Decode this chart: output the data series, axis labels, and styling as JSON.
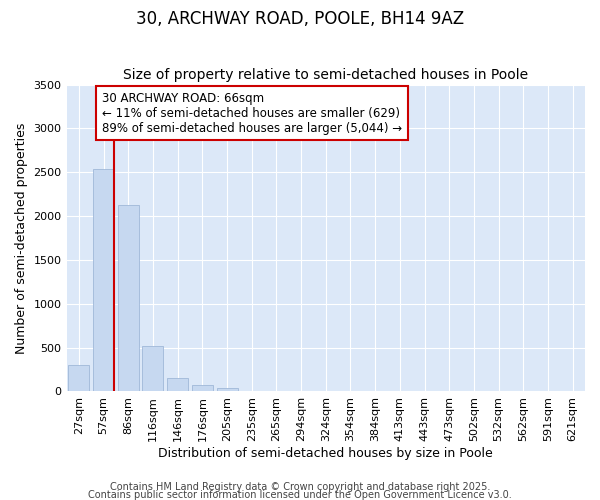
{
  "title": "30, ARCHWAY ROAD, POOLE, BH14 9AZ",
  "subtitle": "Size of property relative to semi-detached houses in Poole",
  "xlabel": "Distribution of semi-detached houses by size in Poole",
  "ylabel": "Number of semi-detached properties",
  "bins": [
    "27sqm",
    "57sqm",
    "86sqm",
    "116sqm",
    "146sqm",
    "176sqm",
    "205sqm",
    "235sqm",
    "265sqm",
    "294sqm",
    "324sqm",
    "354sqm",
    "384sqm",
    "413sqm",
    "443sqm",
    "473sqm",
    "502sqm",
    "532sqm",
    "562sqm",
    "591sqm",
    "621sqm"
  ],
  "values": [
    300,
    2540,
    2130,
    520,
    150,
    70,
    45,
    10,
    3,
    1,
    0,
    0,
    0,
    0,
    0,
    0,
    0,
    0,
    0,
    0,
    0
  ],
  "bar_color": "#c6d8f0",
  "bar_edge_color": "#a0b8d8",
  "vline_color": "#cc0000",
  "annotation_line1": "30 ARCHWAY ROAD: 66sqm",
  "annotation_line2": "← 11% of semi-detached houses are smaller (629)",
  "annotation_line3": "89% of semi-detached houses are larger (5,044) →",
  "annotation_box_color": "white",
  "annotation_box_edge_color": "#cc0000",
  "ylim": [
    0,
    3500
  ],
  "yticks": [
    0,
    500,
    1000,
    1500,
    2000,
    2500,
    3000,
    3500
  ],
  "background_color": "#dce8f8",
  "footer1": "Contains HM Land Registry data © Crown copyright and database right 2025.",
  "footer2": "Contains public sector information licensed under the Open Government Licence v3.0.",
  "title_fontsize": 12,
  "subtitle_fontsize": 10,
  "axis_label_fontsize": 9,
  "tick_fontsize": 8,
  "annotation_fontsize": 8.5,
  "footer_fontsize": 7
}
